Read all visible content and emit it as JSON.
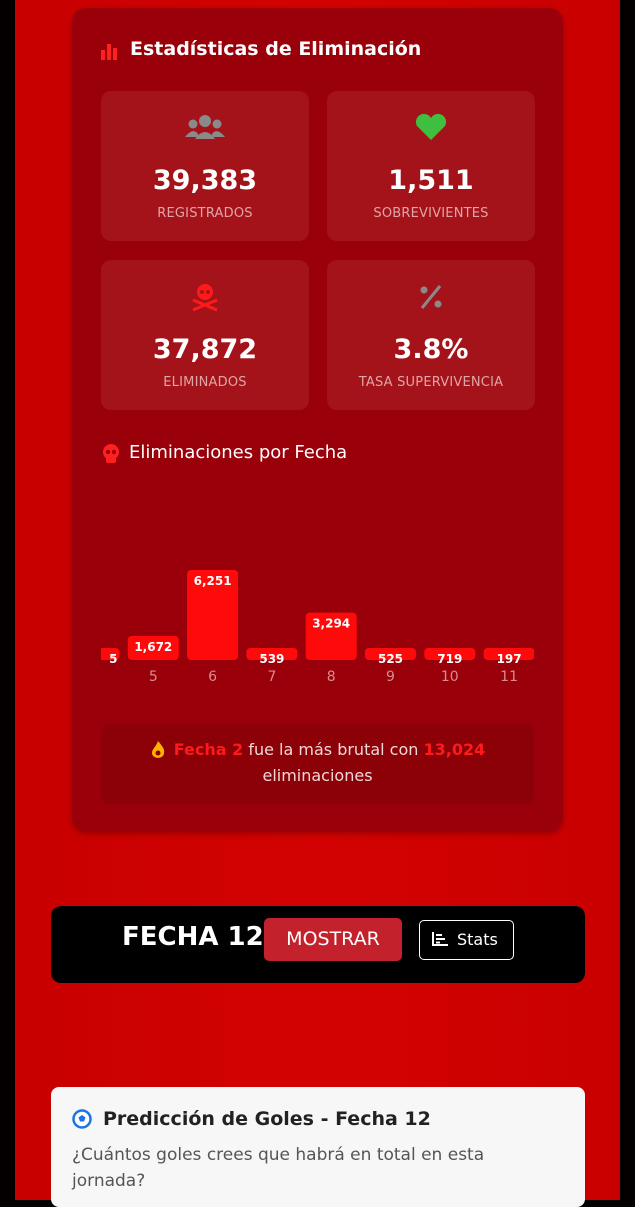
{
  "card": {
    "title": "Estadísticas de Eliminación",
    "stats": [
      {
        "value": "39,383",
        "label": "REGISTRADOS"
      },
      {
        "value": "1,511",
        "label": "SOBREVIVIENTES"
      },
      {
        "value": "37,872",
        "label": "ELIMINADOS"
      },
      {
        "value": "3.8%",
        "label": "TASA SUPERVIVENCIA"
      }
    ]
  },
  "chart_data": {
    "type": "bar",
    "title": "Eliminaciones por Fecha",
    "categories": [
      null,
      "5",
      "6",
      "7",
      "8",
      "9",
      "10",
      "11"
    ],
    "values": [
      5,
      1672,
      6251,
      539,
      3294,
      525,
      719,
      197
    ],
    "value_labels": [
      "5",
      "1,672",
      "6,251",
      "539",
      "3,294",
      "525",
      "719",
      "197"
    ],
    "color": "#ff0a0a"
  },
  "callout": {
    "fecha": "Fecha 2",
    "text1": "fue la más brutal con",
    "count": "13,024",
    "text2": "eliminaciones"
  },
  "fecha_bar": {
    "title": "FECHA 12",
    "show_button": "MOSTRAR",
    "stats_button": "Stats"
  },
  "prediction": {
    "title": "Predicción de Goles - Fecha 12",
    "question": "¿Cuántos goles crees que habrá en total en esta jornada?"
  }
}
